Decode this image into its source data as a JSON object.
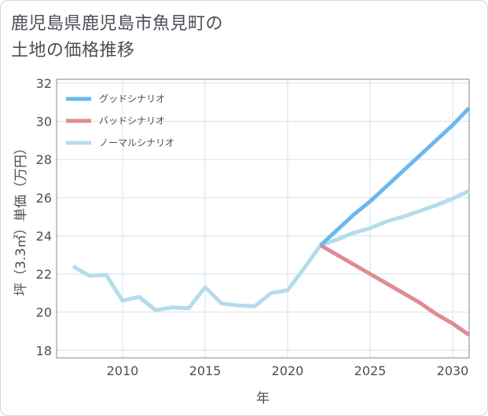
{
  "title": {
    "line1": "鹿児島県鹿児島市魚見町の",
    "line2": "土地の価格推移"
  },
  "chart_data": {
    "type": "line",
    "xlabel": "年",
    "ylabel": "坪（3.3㎡）単価（万円）",
    "xlim": [
      2006,
      2031
    ],
    "ylim": [
      17.6,
      32.2
    ],
    "xticks": [
      2010,
      2015,
      2020,
      2025,
      2030
    ],
    "yticks": [
      18,
      20,
      22,
      24,
      26,
      28,
      30,
      32
    ],
    "grid": true,
    "legend_position": "top-left",
    "series": [
      {
        "name": "グッドシナリオ",
        "color": "#6bb8ec",
        "x": [
          2022,
          2023,
          2024,
          2025,
          2026,
          2027,
          2028,
          2029,
          2030,
          2031
        ],
        "y": [
          23.5,
          24.3,
          25.1,
          25.8,
          26.6,
          27.4,
          28.2,
          29.0,
          29.8,
          30.7
        ]
      },
      {
        "name": "バッドシナリオ",
        "color": "#de8b92",
        "x": [
          2022,
          2023,
          2024,
          2025,
          2026,
          2027,
          2028,
          2029,
          2030,
          2031
        ],
        "y": [
          23.5,
          23.0,
          22.5,
          22.0,
          21.5,
          21.0,
          20.5,
          19.9,
          19.4,
          18.8
        ]
      },
      {
        "name": "ノーマルシナリオ",
        "color": "#b4dcec",
        "x": [
          2007,
          2008,
          2009,
          2010,
          2011,
          2012,
          2013,
          2014,
          2015,
          2016,
          2017,
          2018,
          2019,
          2020,
          2021,
          2022,
          2023,
          2024,
          2025,
          2026,
          2027,
          2028,
          2029,
          2030,
          2031
        ],
        "y": [
          22.4,
          21.9,
          21.95,
          20.6,
          20.8,
          20.1,
          20.25,
          20.2,
          21.3,
          20.45,
          20.35,
          20.3,
          21.0,
          21.15,
          22.3,
          23.5,
          23.8,
          24.15,
          24.4,
          24.75,
          25.0,
          25.3,
          25.6,
          25.95,
          26.35
        ]
      }
    ]
  }
}
